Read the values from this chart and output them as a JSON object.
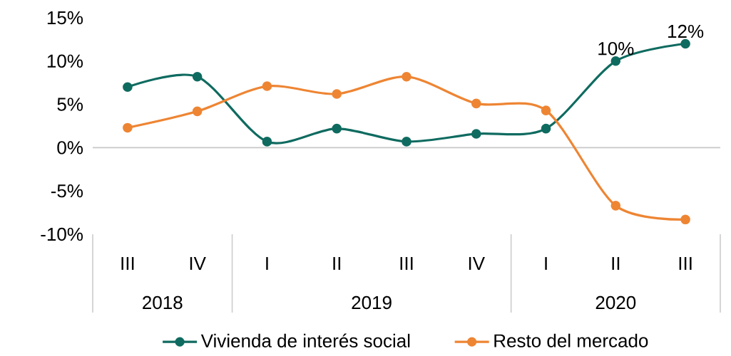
{
  "chart_data": {
    "type": "line",
    "categories": [
      "III",
      "IV",
      "I",
      "II",
      "III",
      "IV",
      "I",
      "II",
      "III"
    ],
    "series": [
      {
        "name": "Vivienda de interés social",
        "color": "#0f6b60",
        "values": [
          7.0,
          8.2,
          0.7,
          2.2,
          0.7,
          1.6,
          2.2,
          10,
          12
        ],
        "value_labels": [
          null,
          null,
          null,
          null,
          null,
          null,
          null,
          "10%",
          "12%"
        ]
      },
      {
        "name": "Resto del mercado",
        "color": "#ee8533",
        "values": [
          2.3,
          4.2,
          7.1,
          6.2,
          8.2,
          5.1,
          4.3,
          -6.7,
          -8.3
        ]
      }
    ],
    "ylim": [
      -10,
      15
    ],
    "yticks": [
      {
        "value": -10,
        "label": "-10%"
      },
      {
        "value": -5,
        "label": "-5%"
      },
      {
        "value": 0,
        "label": "0%"
      },
      {
        "value": 5,
        "label": "5%"
      },
      {
        "value": 10,
        "label": "10%"
      },
      {
        "value": 15,
        "label": "15%"
      }
    ],
    "annotations": [
      "2018",
      "2019",
      "2020"
    ],
    "ref_lines": [
      {
        "axis": "y",
        "value": 0,
        "color": "#c8c8c8"
      }
    ],
    "legend": "bottom",
    "marker": "circle",
    "line_style": "solid",
    "grid": false
  }
}
